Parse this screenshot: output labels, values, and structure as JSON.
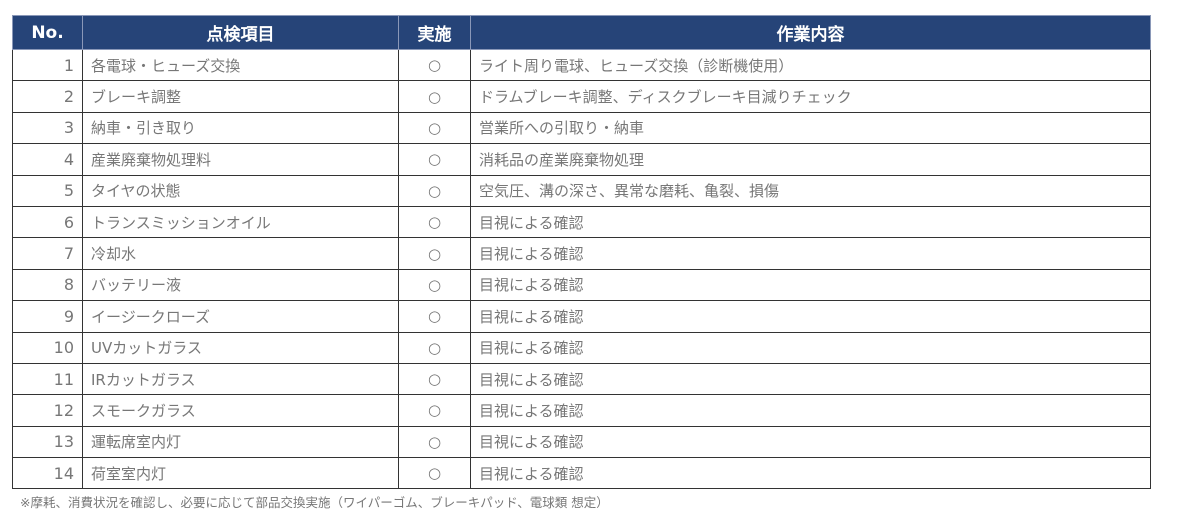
{
  "headers": {
    "no": "No.",
    "item": "点検項目",
    "done": "実施",
    "work": "作業内容"
  },
  "rows": [
    {
      "no": "1",
      "item": "各電球・ヒューズ交換",
      "done": "○",
      "work": "ライト周り電球、ヒューズ交換（診断機使用）"
    },
    {
      "no": "2",
      "item": "ブレーキ調整",
      "done": "○",
      "work": "ドラムブレーキ調整、ディスクブレーキ目減りチェック"
    },
    {
      "no": "3",
      "item": "納車・引き取り",
      "done": "○",
      "work": "営業所への引取り・納車"
    },
    {
      "no": "4",
      "item": "産業廃棄物処理料",
      "done": "○",
      "work": "消耗品の産業廃棄物処理"
    },
    {
      "no": "5",
      "item": "タイヤの状態",
      "done": "○",
      "work": "空気圧、溝の深さ、異常な磨耗、亀裂、損傷"
    },
    {
      "no": "6",
      "item": "トランスミッションオイル",
      "done": "○",
      "work": "目視による確認"
    },
    {
      "no": "7",
      "item": "冷却水",
      "done": "○",
      "work": "目視による確認"
    },
    {
      "no": "8",
      "item": "バッテリー液",
      "done": "○",
      "work": "目視による確認"
    },
    {
      "no": "9",
      "item": "イージークローズ",
      "done": "○",
      "work": "目視による確認"
    },
    {
      "no": "10",
      "item": "UVカットガラス",
      "done": "○",
      "work": "目視による確認"
    },
    {
      "no": "11",
      "item": "IRカットガラス",
      "done": "○",
      "work": "目視による確認"
    },
    {
      "no": "12",
      "item": "スモークガラス",
      "done": "○",
      "work": "目視による確認"
    },
    {
      "no": "13",
      "item": "運転席室内灯",
      "done": "○",
      "work": "目視による確認"
    },
    {
      "no": "14",
      "item": "荷室室内灯",
      "done": "○",
      "work": "目視による確認"
    }
  ],
  "note": "※摩耗、消費状況を確認し、必要に応じて部品交換実施（ワイパーゴム、ブレーキパッド、電球類 想定）",
  "colors": {
    "header_bg": "#264478",
    "text": "#777777"
  }
}
